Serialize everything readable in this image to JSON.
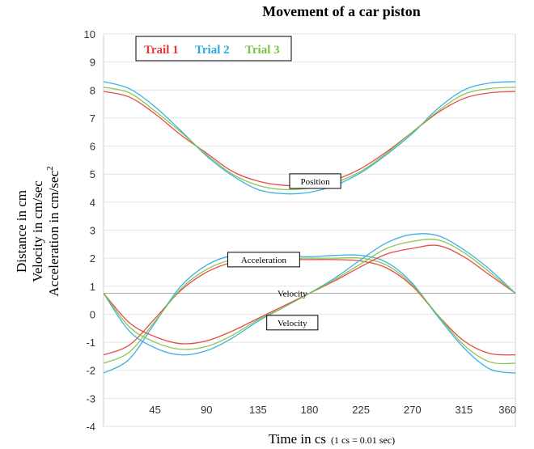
{
  "chart_data": {
    "type": "line",
    "title": "Movement of a car piston",
    "xlabel": "Time in cs",
    "xlabel_note": "(1 cs = 0.01 sec)",
    "ylabel_lines": [
      "Distance in cm",
      "Velocity in cm/sec",
      "Acceleration in cm/sec"
    ],
    "ylabel_superscript": "2",
    "xlim": [
      0,
      360
    ],
    "ylim": [
      -4,
      10
    ],
    "xticks": [
      45,
      90,
      135,
      180,
      225,
      270,
      315,
      360
    ],
    "xtick_labels": [
      "45",
      "90",
      "135",
      "180",
      "225",
      "270",
      "315",
      "360"
    ],
    "yticks": [
      -4,
      -3,
      -2,
      -1,
      0,
      1,
      2,
      3,
      4,
      5,
      6,
      7,
      8,
      9,
      10
    ],
    "ytick_labels": [
      "-4",
      "-3",
      "-2",
      "-1",
      "0",
      "1",
      "2",
      "3",
      "4",
      "5",
      "6",
      "7",
      "8",
      "9",
      "10"
    ],
    "grid": {
      "horizontal": true,
      "vertical": false
    },
    "reference_line_y": 0.75,
    "legend": {
      "placement": "top-left",
      "entries": [
        {
          "label": "Trail 1",
          "color": "#e53935"
        },
        {
          "label": "Trial 2",
          "color": "#29a9e0"
        },
        {
          "label": "Trial 3",
          "color": "#7cc243"
        }
      ]
    },
    "x": [
      0,
      22.5,
      45,
      67.5,
      90,
      112.5,
      135,
      157.5,
      180,
      202.5,
      225,
      247.5,
      270,
      292.5,
      315,
      337.5,
      360
    ],
    "series": [
      {
        "name": "Trail 1",
        "group": "Position",
        "color": "#e53935",
        "values": [
          7.95,
          7.75,
          7.15,
          6.4,
          5.75,
          5.1,
          4.75,
          4.6,
          4.6,
          4.8,
          5.2,
          5.8,
          6.5,
          7.2,
          7.7,
          7.9,
          7.95
        ]
      },
      {
        "name": "Trial 2",
        "group": "Position",
        "color": "#29a9e0",
        "values": [
          8.3,
          8.05,
          7.4,
          6.55,
          5.65,
          4.95,
          4.45,
          4.3,
          4.35,
          4.6,
          5.05,
          5.7,
          6.45,
          7.35,
          8.0,
          8.25,
          8.3
        ]
      },
      {
        "name": "Trial 3",
        "group": "Position",
        "color": "#7cc243",
        "values": [
          8.1,
          7.9,
          7.25,
          6.5,
          5.7,
          5.0,
          4.6,
          4.45,
          4.5,
          4.7,
          5.1,
          5.75,
          6.5,
          7.25,
          7.85,
          8.05,
          8.1
        ]
      },
      {
        "name": "Trail 1",
        "group": "Acceleration",
        "color": "#e53935",
        "values": [
          -1.45,
          -1.1,
          -0.15,
          0.85,
          1.5,
          1.85,
          1.95,
          1.95,
          1.95,
          1.95,
          1.9,
          1.65,
          1.0,
          -0.05,
          -0.95,
          -1.4,
          -1.45
        ]
      },
      {
        "name": "Trial 2",
        "group": "Acceleration",
        "color": "#29a9e0",
        "values": [
          -2.1,
          -1.6,
          -0.3,
          1.0,
          1.75,
          2.1,
          2.15,
          2.1,
          2.05,
          2.1,
          2.1,
          1.85,
          1.1,
          -0.1,
          -1.2,
          -1.95,
          -2.1
        ]
      },
      {
        "name": "Trial 3",
        "group": "Acceleration",
        "color": "#7cc243",
        "values": [
          -1.75,
          -1.35,
          -0.25,
          0.9,
          1.6,
          1.95,
          2.05,
          2.0,
          2.0,
          2.0,
          2.0,
          1.75,
          1.05,
          -0.05,
          -1.1,
          -1.7,
          -1.75
        ]
      },
      {
        "name": "Trail 1",
        "group": "Velocity",
        "color": "#e53935",
        "values": [
          0.75,
          -0.3,
          -0.8,
          -1.05,
          -0.95,
          -0.6,
          -0.15,
          0.3,
          0.75,
          1.2,
          1.7,
          2.15,
          2.35,
          2.45,
          2.05,
          1.4,
          0.75
        ]
      },
      {
        "name": "Trial 2",
        "group": "Velocity",
        "color": "#29a9e0",
        "values": [
          0.75,
          -0.6,
          -1.2,
          -1.45,
          -1.3,
          -0.85,
          -0.25,
          0.25,
          0.75,
          1.3,
          1.95,
          2.55,
          2.85,
          2.8,
          2.3,
          1.6,
          0.75
        ]
      },
      {
        "name": "Trial 3",
        "group": "Velocity",
        "color": "#7cc243",
        "values": [
          0.75,
          -0.45,
          -1.0,
          -1.25,
          -1.15,
          -0.75,
          -0.2,
          0.25,
          0.75,
          1.25,
          1.8,
          2.35,
          2.6,
          2.65,
          2.2,
          1.5,
          0.75
        ]
      }
    ],
    "annotations": [
      {
        "label": "Position",
        "x": 185,
        "y": 4.75,
        "boxed": true
      },
      {
        "label": "Acceleration",
        "x": 140,
        "y": 1.95,
        "boxed": true
      },
      {
        "label": "Velocity",
        "x": 165,
        "y": 0.75,
        "boxed": false
      },
      {
        "label": "Velocity",
        "x": 165,
        "y": -0.3,
        "boxed": true
      }
    ]
  }
}
